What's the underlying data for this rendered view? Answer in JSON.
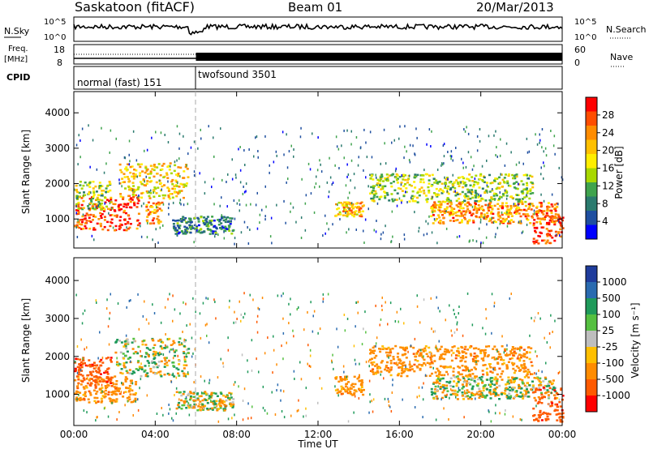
{
  "header": {
    "station": "Saskatoon (fitACF)",
    "beam": "Beam 01",
    "date": "20/Mar/2013"
  },
  "panels": {
    "nsky": {
      "left_label": "N.Sky",
      "right_label": "N.Search",
      "left_ticks": [
        "10^5",
        "10^0"
      ],
      "right_ticks": [
        "10^5",
        "10^0"
      ]
    },
    "freq": {
      "left_label_1": "Freq.",
      "left_label_2": "[MHz]",
      "left_ticks": [
        "18",
        "8"
      ],
      "right_label": "Nave",
      "right_ticks": [
        "60",
        "0"
      ]
    },
    "cpid": {
      "label": "CPID",
      "modes": [
        {
          "name": "normal (fast) 151",
          "start_hour": 0,
          "end_hour": 6
        },
        {
          "name": "twofsound 3501",
          "start_hour": 6,
          "end_hour": 24
        }
      ]
    }
  },
  "colorbars": {
    "power": {
      "label": "Power [dB]",
      "ticks": [
        "28",
        "24",
        "20",
        "16",
        "12",
        "8",
        "4"
      ],
      "colors": [
        "#ff0000",
        "#ff4d00",
        "#ff8c00",
        "#ffc000",
        "#ffee00",
        "#a8d800",
        "#3fa34d",
        "#2a7a6e",
        "#1f4fa0",
        "#0000ff"
      ]
    },
    "velocity": {
      "label": "Velocity [m s⁻¹]",
      "ticks": [
        "1000",
        "500",
        "100",
        "25",
        "-25",
        "-100",
        "-500",
        "-1000"
      ],
      "colors": [
        "#1f3c9c",
        "#2a6bb0",
        "#1f9a5a",
        "#55c040",
        "#bebebe",
        "#ffbf00",
        "#ff8c00",
        "#ff5a00",
        "#ff0000"
      ]
    }
  },
  "xaxis": {
    "title": "Time UT",
    "ticks": [
      "00:00",
      "04:00",
      "08:00",
      "12:00",
      "16:00",
      "20:00",
      "00:00"
    ]
  },
  "chart_data": [
    {
      "type": "heatmap",
      "title": "",
      "xlabel": "Time UT",
      "ylabel": "Slant Range [km]",
      "xlim": [
        0,
        24
      ],
      "ylim": [
        180,
        4600
      ],
      "yticks": [
        "1000",
        "2000",
        "3000",
        "4000"
      ],
      "colorbar": "Power [dB]",
      "clim": [
        0,
        30
      ],
      "echo_regions": [
        {
          "t0": 0.0,
          "t1": 3.2,
          "r0": 700,
          "r1": 1700,
          "power": 26
        },
        {
          "t0": 0.0,
          "t1": 1.8,
          "r0": 1300,
          "r1": 2100,
          "power": 14
        },
        {
          "t0": 2.2,
          "t1": 5.6,
          "r0": 1600,
          "r1": 2600,
          "power": 18
        },
        {
          "t0": 3.5,
          "t1": 4.3,
          "r0": 900,
          "r1": 1500,
          "power": 22
        },
        {
          "t0": 4.8,
          "t1": 7.8,
          "r0": 600,
          "r1": 1100,
          "power": 8
        },
        {
          "t0": 12.8,
          "t1": 14.2,
          "r0": 1100,
          "r1": 1500,
          "power": 20
        },
        {
          "t0": 14.5,
          "t1": 22.5,
          "r0": 1500,
          "r1": 2300,
          "power": 14
        },
        {
          "t0": 17.5,
          "t1": 23.7,
          "r0": 900,
          "r1": 1500,
          "power": 22
        },
        {
          "t0": 22.5,
          "t1": 24.0,
          "r0": 300,
          "r1": 1200,
          "power": 27
        }
      ]
    },
    {
      "type": "heatmap",
      "title": "",
      "xlabel": "Time UT",
      "ylabel": "Slant Range [km]",
      "xlim": [
        0,
        24
      ],
      "ylim": [
        180,
        4600
      ],
      "yticks": [
        "1000",
        "2000",
        "3000",
        "4000"
      ],
      "colorbar": "Velocity [m s⁻¹]",
      "clim": [
        -1000,
        1000
      ],
      "echo_regions": [
        {
          "t0": 0.0,
          "t1": 3.0,
          "r0": 800,
          "r1": 1500,
          "velocity": -300
        },
        {
          "t0": 0.0,
          "t1": 1.8,
          "r0": 1300,
          "r1": 2000,
          "velocity": -800
        },
        {
          "t0": 2.0,
          "t1": 5.6,
          "r0": 1500,
          "r1": 2500,
          "velocity": 0
        },
        {
          "t0": 5.0,
          "t1": 7.8,
          "r0": 600,
          "r1": 1100,
          "velocity": 0
        },
        {
          "t0": 12.8,
          "t1": 14.2,
          "r0": 1000,
          "r1": 1500,
          "velocity": -300
        },
        {
          "t0": 14.5,
          "t1": 22.5,
          "r0": 1500,
          "r1": 2300,
          "velocity": -300
        },
        {
          "t0": 17.5,
          "t1": 23.7,
          "r0": 900,
          "r1": 1500,
          "velocity": 0
        },
        {
          "t0": 22.5,
          "t1": 24.0,
          "r0": 300,
          "r1": 1200,
          "velocity": -800
        }
      ]
    }
  ]
}
